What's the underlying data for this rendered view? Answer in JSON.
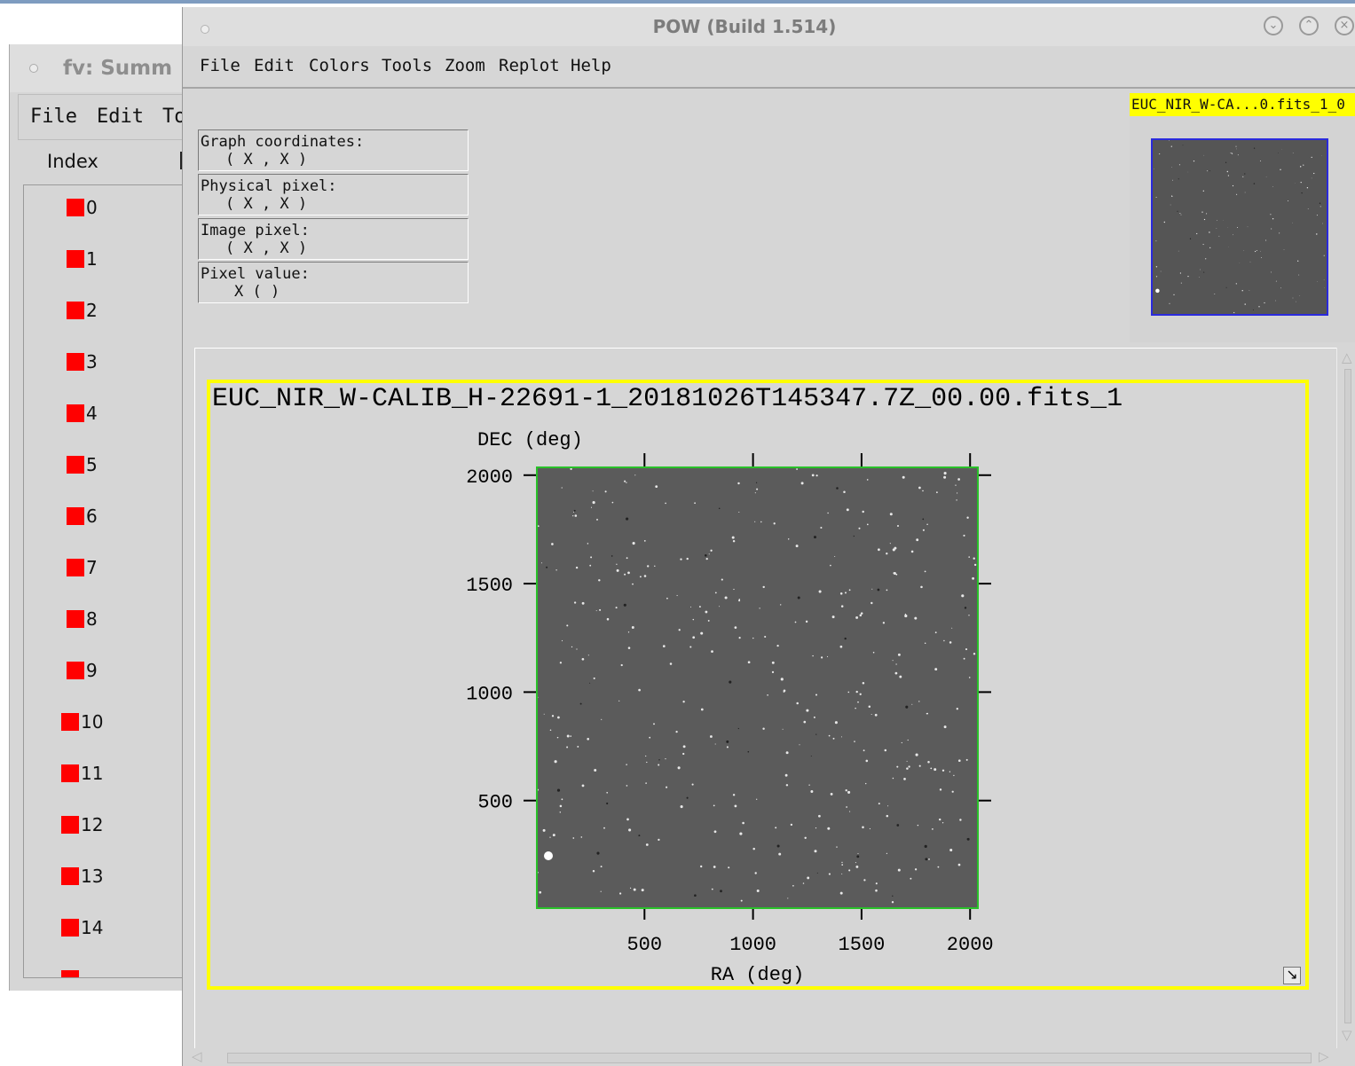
{
  "fv_window": {
    "title": "fv: Summ",
    "menu": [
      "File",
      "Edit",
      "To"
    ],
    "column_header": "Index",
    "rows": [
      "0",
      "1",
      "2",
      "3",
      "4",
      "5",
      "6",
      "7",
      "8",
      "9",
      "10",
      "11",
      "12",
      "13",
      "14"
    ]
  },
  "pow_window": {
    "title": "POW (Build 1.514)",
    "window_buttons": [
      "minimize",
      "maximize",
      "close"
    ],
    "menu": [
      "File",
      "Edit",
      "Colors",
      "Tools",
      "Zoom",
      "Replot",
      "Help"
    ],
    "info_panels": [
      {
        "label": "Graph coordinates:",
        "value": "( X , X )"
      },
      {
        "label": "Physical pixel:",
        "value": "( X , X )"
      },
      {
        "label": "Image pixel:",
        "value": "( X , X )"
      },
      {
        "label": "Pixel value:",
        "value": "X ( )"
      }
    ],
    "thumbnail_label": "EUC_NIR_W-CA...0.fits_1_0"
  },
  "chart_data": {
    "type": "heatmap",
    "title": "EUC_NIR_W-CALIB_H-22691-1_20181026T145347.7Z_00.00.fits_1",
    "xlabel": "RA (deg)",
    "ylabel": "DEC (deg)",
    "x_ticks": [
      500,
      1000,
      1500,
      2000
    ],
    "y_ticks": [
      500,
      1000,
      1500,
      2000
    ],
    "x_tick_labels": [
      "500",
      "1000",
      "1500",
      "2000"
    ],
    "y_tick_labels": [
      "500",
      "1000",
      "1500",
      "2000"
    ],
    "xlim": [
      0,
      2040
    ],
    "ylim": [
      0,
      2040
    ],
    "image_border_color": "#29c129",
    "frame_color": "#ffff00"
  }
}
